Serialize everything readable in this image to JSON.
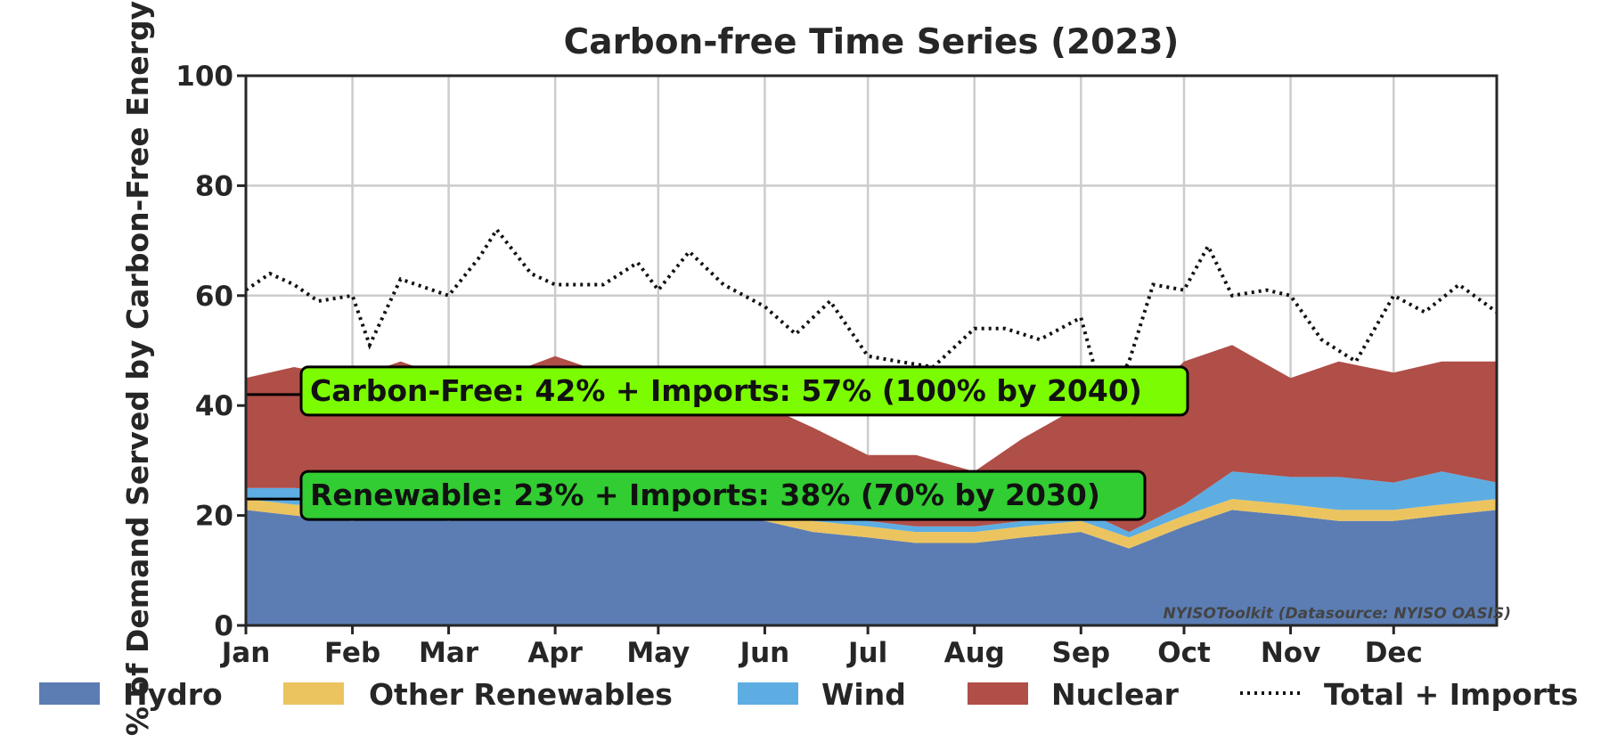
{
  "chart_data": {
    "type": "area",
    "title": "Carbon-free Time Series (2023)",
    "xlabel": "",
    "ylabel": "% of Demand Served by Carbon-Free Energy",
    "ylim": [
      0,
      100
    ],
    "yticks": [
      0,
      20,
      40,
      60,
      80,
      100
    ],
    "x_range": [
      "2023-01-01",
      "2023-12-31"
    ],
    "xtick_labels": [
      "Jan",
      "Feb",
      "Mar",
      "Apr",
      "May",
      "Jun",
      "Jul",
      "Aug",
      "Sep",
      "Oct",
      "Nov",
      "Dec"
    ],
    "grid": true,
    "legend_position": "bottom",
    "stacked": true,
    "series": [
      {
        "name": "Hydro",
        "kind": "area",
        "color": "#5b7db4",
        "x": [
          "2023-01-01",
          "2023-01-15",
          "2023-02-01",
          "2023-02-15",
          "2023-03-01",
          "2023-03-15",
          "2023-04-01",
          "2023-04-15",
          "2023-05-01",
          "2023-05-15",
          "2023-06-01",
          "2023-06-15",
          "2023-07-01",
          "2023-07-15",
          "2023-08-01",
          "2023-08-15",
          "2023-09-01",
          "2023-09-15",
          "2023-10-01",
          "2023-10-15",
          "2023-11-01",
          "2023-11-15",
          "2023-12-01",
          "2023-12-15",
          "2023-12-31"
        ],
        "values": [
          21,
          20,
          19,
          20,
          19,
          20,
          21,
          20,
          21,
          20,
          19,
          17,
          16,
          15,
          15,
          16,
          17,
          14,
          18,
          21,
          20,
          19,
          19,
          20,
          21
        ]
      },
      {
        "name": "Other Renewables",
        "kind": "area",
        "color": "#ecc45f",
        "x": [
          "2023-01-01",
          "2023-01-15",
          "2023-02-01",
          "2023-02-15",
          "2023-03-01",
          "2023-03-15",
          "2023-04-01",
          "2023-04-15",
          "2023-05-01",
          "2023-05-15",
          "2023-06-01",
          "2023-06-15",
          "2023-07-01",
          "2023-07-15",
          "2023-08-01",
          "2023-08-15",
          "2023-09-01",
          "2023-09-15",
          "2023-10-01",
          "2023-10-15",
          "2023-11-01",
          "2023-11-15",
          "2023-12-01",
          "2023-12-15",
          "2023-12-31"
        ],
        "values": [
          2,
          2,
          2,
          2,
          2,
          2,
          2,
          2,
          2,
          2,
          2,
          2,
          2,
          2,
          2,
          2,
          2,
          2,
          2,
          2,
          2,
          2,
          2,
          2,
          2
        ]
      },
      {
        "name": "Wind",
        "kind": "area",
        "color": "#5dade2",
        "x": [
          "2023-01-01",
          "2023-01-15",
          "2023-02-01",
          "2023-02-15",
          "2023-03-01",
          "2023-03-15",
          "2023-04-01",
          "2023-04-15",
          "2023-05-01",
          "2023-05-15",
          "2023-06-01",
          "2023-06-15",
          "2023-07-01",
          "2023-07-15",
          "2023-08-01",
          "2023-08-15",
          "2023-09-01",
          "2023-09-15",
          "2023-10-01",
          "2023-10-15",
          "2023-11-01",
          "2023-11-15",
          "2023-12-01",
          "2023-12-15",
          "2023-12-31"
        ],
        "values": [
          2,
          3,
          3,
          4,
          3,
          3,
          4,
          4,
          4,
          3,
          1,
          1,
          1,
          1,
          1,
          1,
          2,
          1,
          2,
          5,
          5,
          6,
          5,
          6,
          3
        ]
      },
      {
        "name": "Nuclear",
        "kind": "area",
        "color": "#b04e48",
        "x": [
          "2023-01-01",
          "2023-01-15",
          "2023-02-01",
          "2023-02-15",
          "2023-03-01",
          "2023-03-15",
          "2023-04-01",
          "2023-04-15",
          "2023-05-01",
          "2023-05-15",
          "2023-06-01",
          "2023-06-15",
          "2023-07-01",
          "2023-07-15",
          "2023-08-01",
          "2023-08-15",
          "2023-09-01",
          "2023-09-15",
          "2023-10-01",
          "2023-10-15",
          "2023-11-01",
          "2023-11-15",
          "2023-12-01",
          "2023-12-15",
          "2023-12-31"
        ],
        "values": [
          20,
          22,
          21,
          22,
          21,
          20,
          22,
          20,
          19,
          22,
          18,
          16,
          12,
          13,
          10,
          15,
          19,
          21,
          26,
          23,
          18,
          21,
          20,
          20,
          22
        ]
      },
      {
        "name": "Total + Imports",
        "kind": "line",
        "color": "#111111",
        "style": "dotted",
        "x": [
          "2023-01-01",
          "2023-01-08",
          "2023-01-15",
          "2023-01-22",
          "2023-02-01",
          "2023-02-06",
          "2023-02-15",
          "2023-03-01",
          "2023-03-10",
          "2023-03-15",
          "2023-03-25",
          "2023-04-01",
          "2023-04-15",
          "2023-04-25",
          "2023-05-01",
          "2023-05-10",
          "2023-05-20",
          "2023-06-01",
          "2023-06-10",
          "2023-06-20",
          "2023-07-01",
          "2023-07-10",
          "2023-07-20",
          "2023-08-01",
          "2023-08-10",
          "2023-08-20",
          "2023-09-01",
          "2023-09-08",
          "2023-09-15",
          "2023-09-22",
          "2023-10-01",
          "2023-10-08",
          "2023-10-15",
          "2023-10-25",
          "2023-11-01",
          "2023-11-10",
          "2023-11-20",
          "2023-12-01",
          "2023-12-10",
          "2023-12-20",
          "2023-12-31"
        ],
        "values": [
          61,
          64,
          62,
          59,
          60,
          51,
          63,
          60,
          67,
          72,
          64,
          62,
          62,
          66,
          61,
          68,
          62,
          58,
          53,
          59,
          49,
          48,
          47,
          54,
          54,
          52,
          56,
          40,
          48,
          62,
          61,
          69,
          60,
          61,
          60,
          52,
          48,
          60,
          57,
          62,
          57
        ]
      }
    ],
    "annotations": [
      {
        "text": "Carbon-Free: 42% + Imports: 57% (100% by 2040)",
        "y": 42,
        "box_color": "#7cfc00"
      },
      {
        "text": "Renewable: 23% + Imports: 38% (70% by 2030)",
        "y": 23,
        "box_color": "#32cd32"
      }
    ],
    "watermark": "NYISOToolkit (Datasource: NYISO OASIS)"
  }
}
